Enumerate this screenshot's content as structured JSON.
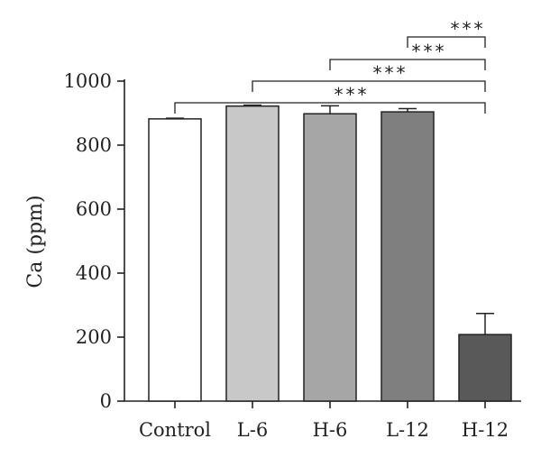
{
  "chart_data": {
    "type": "bar",
    "categories": [
      "Control",
      "L-6",
      "H-6",
      "L-12",
      "H-12"
    ],
    "values": [
      882,
      922,
      898,
      904,
      208
    ],
    "errors": [
      2,
      3,
      25,
      10,
      66
    ],
    "colors": [
      "#ffffff",
      "#c8c8c8",
      "#a6a6a6",
      "#7f7f7f",
      "#595959"
    ],
    "ylabel": "Ca (ppm)",
    "xlabel": "",
    "ylim": [
      0,
      1000
    ],
    "yticks": [
      0,
      200,
      400,
      600,
      800,
      1000
    ],
    "grid": false,
    "significance": [
      {
        "from": "L-12",
        "to": "H-12",
        "label": "***"
      },
      {
        "from": "H-6",
        "to": "H-12",
        "label": "***"
      },
      {
        "from": "L-6",
        "to": "H-12",
        "label": "***"
      },
      {
        "from": "Control",
        "to": "H-12",
        "label": "***"
      }
    ]
  }
}
